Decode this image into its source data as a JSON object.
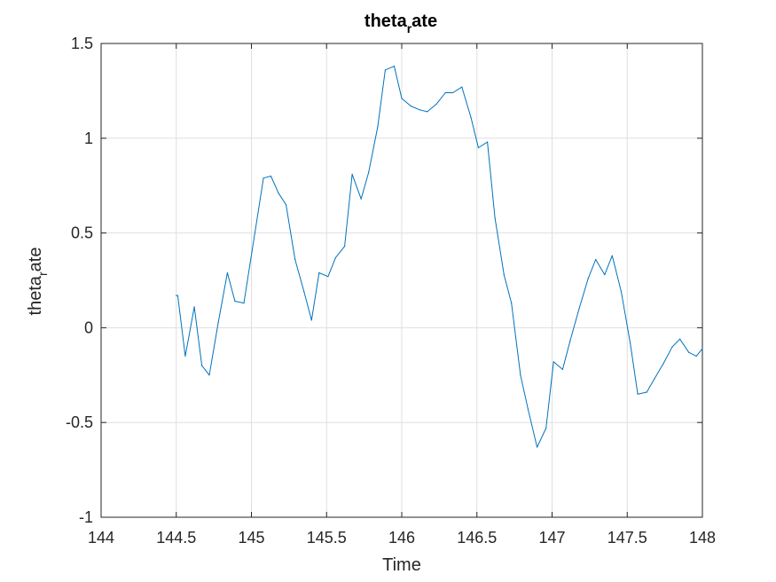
{
  "chart_data": {
    "type": "line",
    "title": {
      "main": "theta",
      "sub": "r",
      "rest": "ate"
    },
    "xlabel": "Time",
    "ylabel": {
      "main": "theta",
      "sub": "r",
      "rest": "ate"
    },
    "xlim": [
      144,
      148
    ],
    "ylim": [
      -1,
      1.5
    ],
    "xticks": [
      144,
      144.5,
      145,
      145.5,
      146,
      146.5,
      147,
      147.5,
      148
    ],
    "xtick_labels": [
      "144",
      "144.5",
      "145",
      "145.5",
      "146",
      "146.5",
      "147",
      "147.5",
      "148"
    ],
    "yticks": [
      -1,
      -0.5,
      0,
      0.5,
      1,
      1.5
    ],
    "ytick_labels": [
      "-1",
      "-0.5",
      "0",
      "0.5",
      "1",
      "1.5"
    ],
    "grid": true,
    "colors": {
      "line": "#0072BD",
      "grid": "#DFDFDF",
      "axis": "#262626"
    },
    "series": [
      {
        "x": [
          144.5,
          144.51,
          144.56,
          144.62,
          144.67,
          144.72,
          144.78,
          144.84,
          144.89,
          144.95,
          145.08,
          145.13,
          145.18,
          145.23,
          145.29,
          145.35,
          145.4,
          145.45,
          145.51,
          145.56,
          145.62,
          145.67,
          145.73,
          145.78,
          145.84,
          145.89,
          145.95,
          146.0,
          146.06,
          146.12,
          146.17,
          146.23,
          146.29,
          146.34,
          146.4,
          146.46,
          146.51,
          146.57,
          146.62,
          146.68,
          146.73,
          146.79,
          146.84,
          146.9,
          146.96,
          147.01,
          147.07,
          147.12,
          147.18,
          147.24,
          147.29,
          147.35,
          147.4,
          147.46,
          147.52,
          147.57,
          147.63,
          147.68,
          147.74,
          147.8,
          147.85,
          147.91,
          147.96,
          148.0
        ],
        "y": [
          0.17,
          0.17,
          -0.15,
          0.11,
          -0.2,
          -0.25,
          0.03,
          0.29,
          0.14,
          0.13,
          0.79,
          0.8,
          0.71,
          0.65,
          0.36,
          0.19,
          0.04,
          0.29,
          0.27,
          0.37,
          0.43,
          0.81,
          0.68,
          0.82,
          1.06,
          1.36,
          1.38,
          1.21,
          1.17,
          1.15,
          1.14,
          1.18,
          1.24,
          1.24,
          1.27,
          1.11,
          0.95,
          0.98,
          0.58,
          0.28,
          0.13,
          -0.25,
          -0.43,
          -0.63,
          -0.53,
          -0.18,
          -0.22,
          -0.07,
          0.1,
          0.26,
          0.36,
          0.28,
          0.38,
          0.19,
          -0.08,
          -0.35,
          -0.34,
          -0.27,
          -0.19,
          -0.1,
          -0.06,
          -0.13,
          -0.15,
          -0.11
        ]
      }
    ]
  }
}
